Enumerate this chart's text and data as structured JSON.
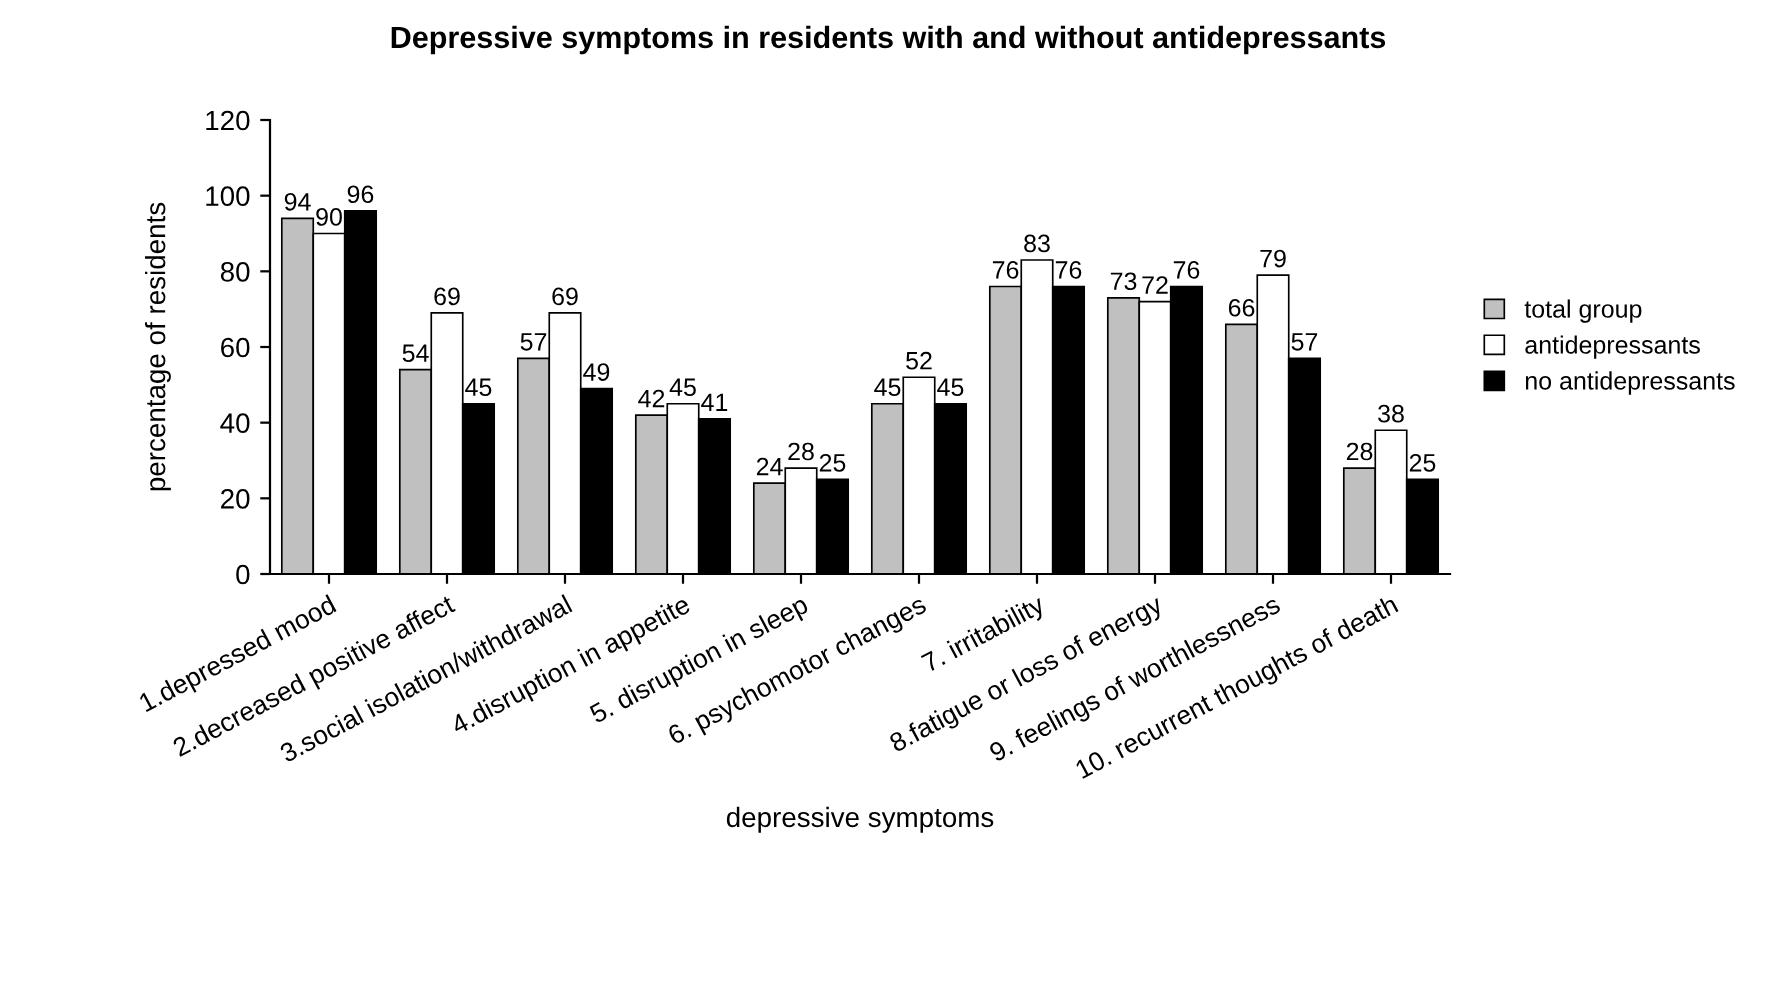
{
  "chart_data": {
    "type": "bar",
    "title": "Depressive symptoms in residents with and without antidepressants",
    "xlabel": "depressive symptoms",
    "ylabel": "percentage of residents",
    "categories": [
      "1.depressed mood",
      "2.decreased positive affect",
      "3.social isolation/withdrawal",
      "4.disruption in appetite",
      "5. disruption in sleep",
      "6. psychomotor changes",
      "7. irritability",
      "8.fatigue or loss of energy",
      "9. feelings of worthlessness",
      "10. recurrent thoughts of death"
    ],
    "series": [
      {
        "name": "total group",
        "color": "#c0c0c0",
        "values": [
          94,
          54,
          57,
          42,
          24,
          45,
          76,
          73,
          66,
          28
        ]
      },
      {
        "name": "antidepressants",
        "color": "#ffffff",
        "values": [
          90,
          69,
          69,
          45,
          28,
          52,
          83,
          72,
          79,
          38
        ]
      },
      {
        "name": "no antidepressants",
        "color": "#000000",
        "values": [
          96,
          45,
          49,
          41,
          25,
          45,
          76,
          76,
          57,
          25
        ]
      }
    ],
    "ylim": [
      0,
      120
    ],
    "yticks": [
      0,
      20,
      40,
      60,
      80,
      100,
      120
    ],
    "grid": false,
    "legend": "right",
    "data_labels": true
  }
}
